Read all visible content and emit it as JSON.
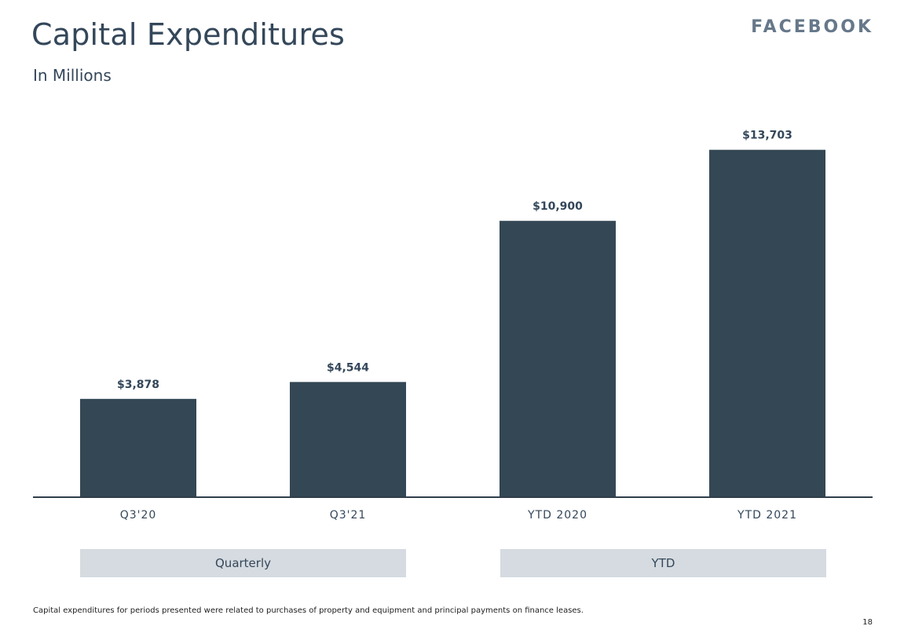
{
  "header": {
    "title": "Capital Expenditures",
    "subtitle": "In Millions",
    "brand": "FACEBOOK"
  },
  "colors": {
    "bar": "#344754",
    "axis": "#2f3e4a",
    "group_box": "#d5dbe0"
  },
  "chart_data": {
    "type": "bar",
    "title": "Capital Expenditures",
    "subtitle": "In Millions",
    "xlabel": "",
    "ylabel": "",
    "categories": [
      "Q3'20",
      "Q3'21",
      "YTD 2020",
      "YTD 2021"
    ],
    "values": [
      3878,
      4544,
      10900,
      13703
    ],
    "data_labels": [
      "$3,878",
      "$4,544",
      "$10,900",
      "$13,703"
    ],
    "ylim": [
      0,
      14500
    ],
    "grid": false,
    "legend": "none",
    "groups": [
      {
        "label": "Quarterly",
        "categories": [
          "Q3'20",
          "Q3'21"
        ]
      },
      {
        "label": "YTD",
        "categories": [
          "YTD 2020",
          "YTD 2021"
        ]
      }
    ]
  },
  "footer": {
    "footnote": "Capital expenditures for periods presented were related to purchases of property and equipment and principal payments on finance leases.",
    "page_number": "18"
  }
}
